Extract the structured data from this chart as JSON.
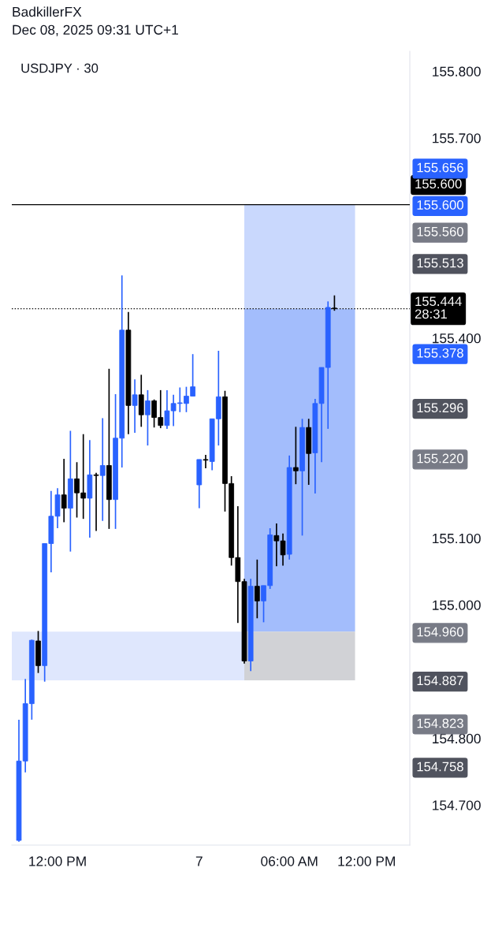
{
  "chart_data": {
    "type": "candlestick",
    "title": "USDJPY · 30",
    "annotations": [
      "BadkillerFX",
      "Dec 08, 2025 09:31 UTC+1"
    ],
    "categories": [
      null,
      null,
      null,
      null,
      null,
      null,
      "12:00 PM",
      null,
      null,
      null,
      null,
      null,
      null,
      null,
      null,
      null,
      null,
      null,
      null,
      null,
      null,
      null,
      null,
      null,
      null,
      null,
      null,
      null,
      "7",
      null,
      null,
      null,
      null,
      null,
      null,
      null,
      null,
      null,
      null,
      null,
      null,
      null,
      "06:00 AM",
      null,
      null,
      null,
      null,
      null,
      null,
      null,
      null,
      null,
      null,
      null,
      "12:00 PM",
      null,
      null,
      null,
      null,
      null,
      null
    ],
    "ohlc": [
      [
        154.647,
        154.828,
        154.645,
        154.766
      ],
      [
        154.766,
        154.889,
        154.749,
        154.852
      ],
      [
        154.852,
        154.948,
        154.828,
        154.947
      ],
      [
        154.946,
        154.961,
        154.898,
        154.909
      ],
      [
        154.909,
        155.092,
        154.885,
        155.092
      ],
      [
        155.092,
        155.171,
        155.049,
        155.133
      ],
      [
        155.133,
        155.175,
        155.115,
        155.165
      ],
      [
        155.165,
        155.219,
        155.124,
        155.145
      ],
      [
        155.145,
        155.261,
        155.08,
        155.189
      ],
      [
        155.189,
        155.214,
        155.131,
        155.168
      ],
      [
        155.168,
        155.256,
        155.129,
        155.16
      ],
      [
        155.16,
        155.247,
        155.101,
        155.195
      ],
      [
        155.195,
        155.198,
        155.111,
        155.194
      ],
      [
        155.194,
        155.28,
        155.126,
        155.209
      ],
      [
        155.209,
        155.354,
        155.114,
        155.158
      ],
      [
        155.158,
        155.316,
        155.114,
        155.25
      ],
      [
        155.25,
        155.494,
        155.206,
        155.412
      ],
      [
        155.412,
        155.439,
        155.256,
        155.299
      ],
      [
        155.299,
        155.338,
        155.258,
        155.315
      ],
      [
        155.315,
        155.345,
        155.267,
        155.285
      ],
      [
        155.285,
        155.322,
        155.239,
        155.306
      ],
      [
        155.306,
        155.308,
        155.266,
        155.281
      ],
      [
        155.281,
        155.322,
        155.265,
        155.269
      ],
      [
        155.269,
        155.322,
        155.264,
        155.291
      ],
      [
        155.291,
        155.315,
        155.268,
        155.302
      ],
      [
        155.302,
        155.326,
        155.289,
        155.303
      ],
      [
        155.302,
        155.327,
        155.289,
        155.313
      ],
      [
        155.313,
        155.376,
        155.313,
        155.327
      ],
      [
        155.18,
        155.218,
        155.145,
        155.218
      ],
      [
        155.218,
        155.225,
        155.205,
        155.217
      ],
      [
        155.215,
        155.279,
        155.202,
        155.279
      ],
      [
        155.279,
        155.381,
        155.239,
        155.312
      ],
      [
        155.312,
        155.321,
        155.14,
        155.182
      ],
      [
        155.182,
        155.193,
        155.059,
        155.071
      ],
      [
        155.071,
        155.148,
        154.973,
        155.035
      ],
      [
        155.035,
        155.039,
        154.912,
        154.916
      ],
      [
        154.916,
        155.039,
        154.901,
        155.028
      ],
      [
        155.028,
        155.068,
        154.98,
        155.006
      ],
      [
        155.006,
        155.029,
        154.974,
        155.029
      ],
      [
        155.029,
        155.115,
        155.024,
        155.105
      ],
      [
        155.104,
        155.122,
        155.058,
        155.096
      ],
      [
        155.096,
        155.107,
        155.059,
        155.075
      ],
      [
        155.076,
        155.224,
        155.068,
        155.206
      ],
      [
        155.206,
        155.267,
        155.181,
        155.201
      ],
      [
        155.201,
        155.279,
        155.104,
        155.266
      ],
      [
        155.266,
        155.279,
        155.18,
        155.227
      ],
      [
        155.228,
        155.309,
        155.167,
        155.302
      ],
      [
        155.302,
        155.356,
        155.214,
        155.356
      ],
      [
        155.356,
        155.455,
        155.264,
        155.446
      ],
      [
        155.445,
        155.464,
        155.441,
        155.444
      ],
      null,
      null,
      null,
      null,
      null,
      null,
      null,
      null,
      null,
      null,
      null
    ],
    "colors": [
      "#2962ff",
      "#2962ff",
      "#2962ff",
      "#000000",
      "#2962ff",
      "#2962ff",
      "#2962ff",
      "#000000",
      "#2962ff",
      "#000000",
      "#000000",
      "#2962ff",
      "#000000",
      "#2962ff",
      "#000000",
      "#2962ff",
      "#2962ff",
      "#000000",
      "#2962ff",
      "#000000",
      "#2962ff",
      "#000000",
      "#000000",
      "#2962ff",
      "#2962ff",
      "#2962ff",
      "#2962ff",
      "#2962ff",
      "#2962ff",
      "#000000",
      "#2962ff",
      "#2962ff",
      "#000000",
      "#000000",
      "#000000",
      "#000000",
      "#2962ff",
      "#000000",
      "#2962ff",
      "#2962ff",
      "#000000",
      "#000000",
      "#2962ff",
      "#000000",
      "#2962ff",
      "#000000",
      "#2962ff",
      "#2962ff",
      "#2962ff",
      "#000000",
      null,
      null,
      null,
      null,
      null,
      null,
      null,
      null,
      null,
      null,
      null
    ],
    "ylim": [
      154.64,
      155.83
    ],
    "yticks": [
      {
        "value": 154.7,
        "label": "154.700"
      },
      {
        "value": 154.8,
        "label": "154.800"
      },
      {
        "value": 155.0,
        "label": "155.000"
      },
      {
        "value": 155.1,
        "label": "155.100"
      },
      {
        "value": 155.4,
        "label": "155.400"
      },
      {
        "value": 155.7,
        "label": "155.700"
      },
      {
        "value": 155.8,
        "label": "155.800"
      }
    ],
    "bands": [
      {
        "axis": "y",
        "from": 154.887,
        "to": 154.96,
        "color": "#dfe7fd"
      },
      {
        "axis": "y",
        "from": 155.444,
        "to": 155.6,
        "color": "#c9d8fd"
      },
      {
        "axis": "y",
        "from": 154.96,
        "to": 155.444,
        "color": "#a3bdfc"
      },
      {
        "axis": "y",
        "from": 154.887,
        "to": 154.96,
        "color": "#d1d2d6"
      }
    ],
    "y2lim": [
      154.64,
      155.83
    ],
    "y2ticks": [
      {
        "value": 155.656,
        "label": "155.656"
      },
      {
        "value": 155.6,
        "label": "155.600"
      },
      {
        "value": 155.56,
        "label": "155.560"
      },
      {
        "value": 155.513,
        "label": "155.513"
      },
      {
        "value": 155.378,
        "label": "155.378"
      },
      {
        "value": 155.296,
        "label": "155.296"
      },
      {
        "value": 155.22,
        "label": "155.220"
      },
      {
        "value": 154.96,
        "label": "154.960"
      },
      {
        "value": 154.887,
        "label": "154.887"
      },
      {
        "value": 154.823,
        "label": "154.823"
      },
      {
        "value": 154.758,
        "label": "154.758"
      }
    ],
    "ref_lines": [
      {
        "axis": "y",
        "value": 155.6,
        "label": "155.600",
        "color": "#000000",
        "line_style": "solid"
      },
      {
        "axis": "y",
        "value": 155.444,
        "label": "155.444\n28:31",
        "color": "#000000",
        "line_style": "dotted"
      }
    ]
  }
}
